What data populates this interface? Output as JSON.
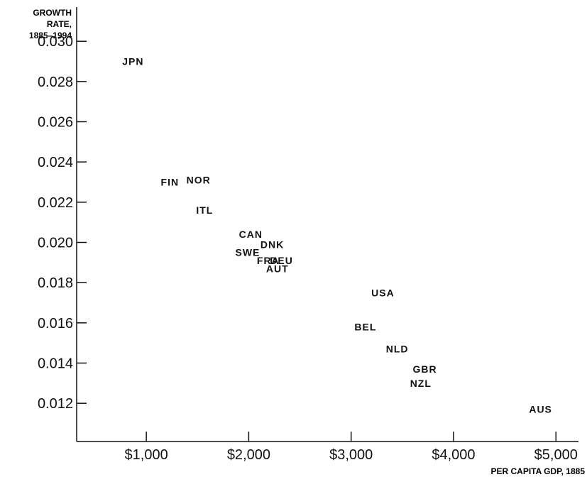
{
  "chart_data": {
    "type": "scatter",
    "title": "",
    "ylabel": [
      "GROWTH",
      "RATE,",
      "1885–1994"
    ],
    "xlabel": "PER CAPITA GDP, 1885",
    "xlim": [
      320,
      5220
    ],
    "ylim": [
      0.0101,
      0.0317
    ],
    "xticks": [
      1000,
      2000,
      3000,
      4000,
      5000
    ],
    "xtick_labels": [
      "$1,000",
      "$2,000",
      "$3,000",
      "$4,000",
      "$5,000"
    ],
    "yticks": [
      0.012,
      0.014,
      0.016,
      0.018,
      0.02,
      0.022,
      0.024,
      0.026,
      0.028,
      0.03
    ],
    "ytick_labels": [
      "0.012",
      "0.014",
      "0.016",
      "0.018",
      "0.020",
      "0.022",
      "0.024",
      "0.026",
      "0.028",
      "0.030"
    ],
    "marker": "country-code text labels",
    "points": [
      {
        "label": "JPN",
        "x": 870,
        "y": 0.029
      },
      {
        "label": "FIN",
        "x": 1230,
        "y": 0.023
      },
      {
        "label": "NOR",
        "x": 1510,
        "y": 0.0231
      },
      {
        "label": "ITL",
        "x": 1570,
        "y": 0.0216
      },
      {
        "label": "CAN",
        "x": 2020,
        "y": 0.0204
      },
      {
        "label": "DNK",
        "x": 2230,
        "y": 0.0199
      },
      {
        "label": "SWE",
        "x": 1990,
        "y": 0.0195
      },
      {
        "label": "FRA",
        "x": 2190,
        "y": 0.0191
      },
      {
        "label": "DEU",
        "x": 2320,
        "y": 0.0191
      },
      {
        "label": "AUT",
        "x": 2280,
        "y": 0.0187
      },
      {
        "label": "USA",
        "x": 3310,
        "y": 0.0175
      },
      {
        "label": "BEL",
        "x": 3140,
        "y": 0.0158
      },
      {
        "label": "NLD",
        "x": 3450,
        "y": 0.0147
      },
      {
        "label": "GBR",
        "x": 3720,
        "y": 0.0137
      },
      {
        "label": "NZL",
        "x": 3680,
        "y": 0.013
      },
      {
        "label": "AUS",
        "x": 4850,
        "y": 0.0117
      }
    ]
  }
}
